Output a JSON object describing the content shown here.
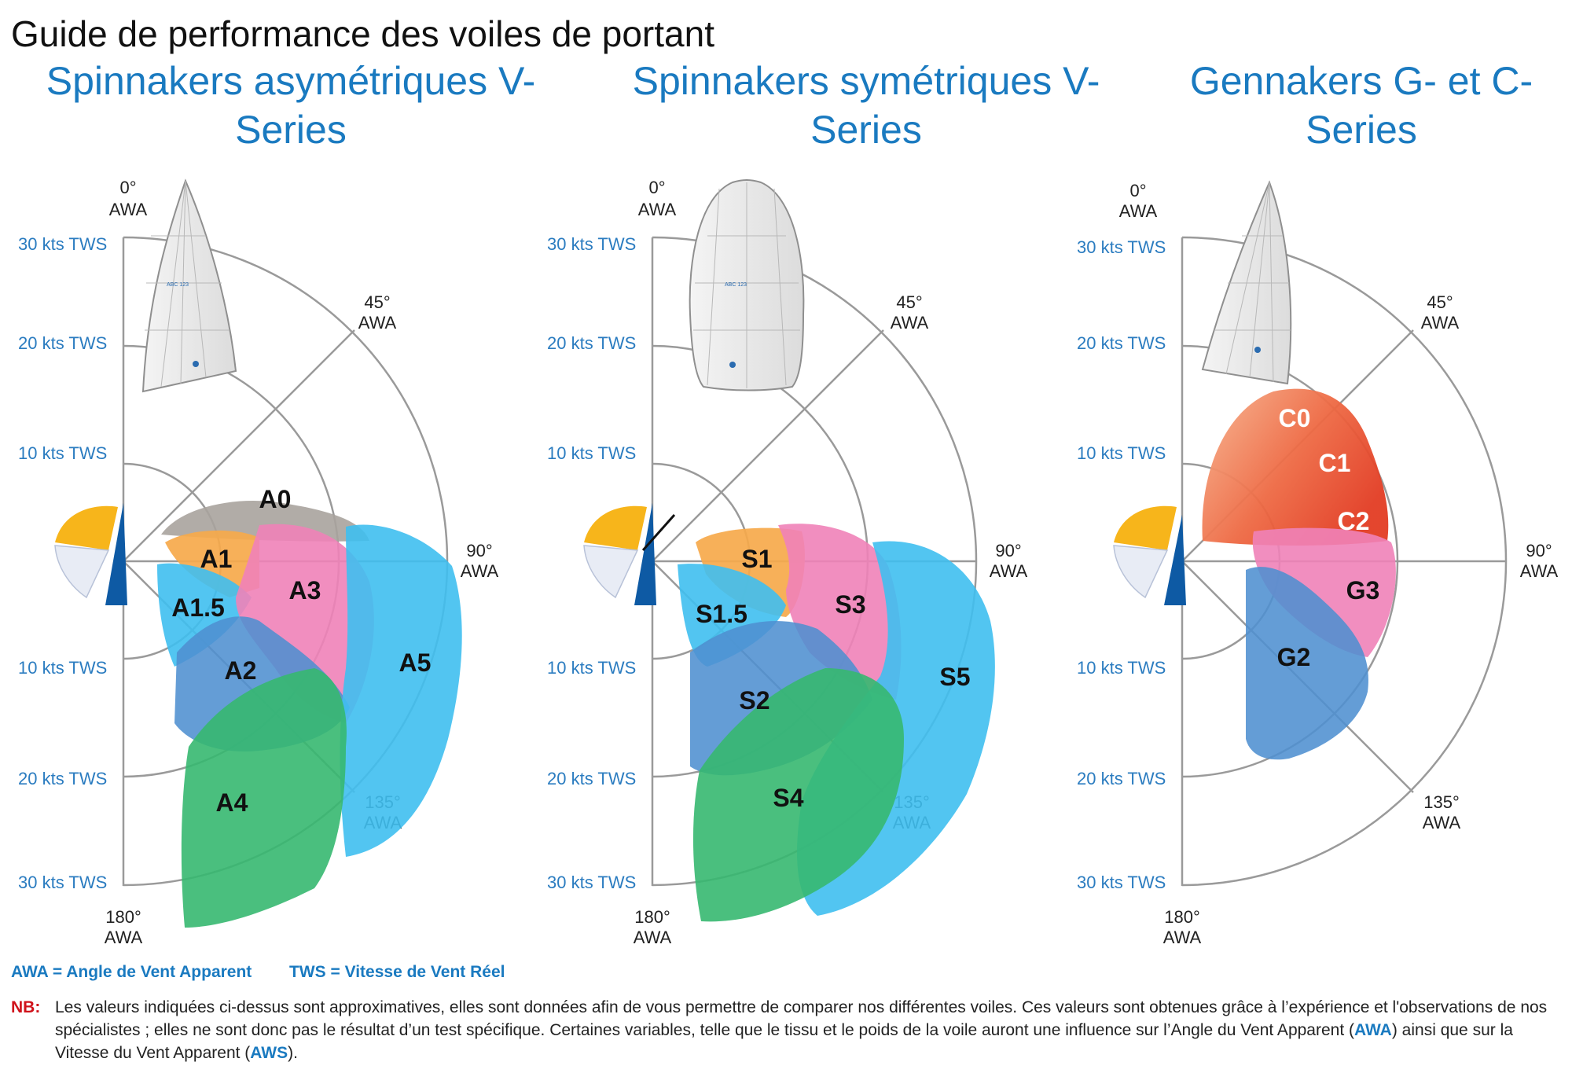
{
  "title": "Guide de performance des voiles de portant",
  "panels": [
    {
      "title_line1": "Spinnakers asymétriques V-",
      "title_line2": "Series",
      "zones": [
        "A0",
        "A1",
        "A1.5",
        "A2",
        "A3",
        "A4",
        "A5"
      ]
    },
    {
      "title_line1": "Spinnakers symétriques V-",
      "title_line2": "Series",
      "zones": [
        "S1",
        "S1.5",
        "S2",
        "S3",
        "S4",
        "S5"
      ]
    },
    {
      "title_line1": "Gennakers G- et C-",
      "title_line2": "Series",
      "zones": [
        "C0",
        "C1",
        "C2",
        "G2",
        "G3"
      ]
    }
  ],
  "polar": {
    "tws_labels": [
      "30 kts TWS",
      "20 kts TWS",
      "10 kts TWS",
      "10 kts TWS",
      "20 kts TWS",
      "30 kts TWS"
    ],
    "awa_angles": [
      "0°",
      "45°",
      "90°",
      "135°",
      "180°"
    ],
    "awa_unit": "AWA",
    "sail_number": "ABC 123"
  },
  "colors": {
    "title_blue": "#1a7ac0",
    "tws_blue": "#2b7cc0",
    "nb_red": "#d0121b",
    "grey_zone": "#a8a39d",
    "orange_zone": "#f6a94b",
    "light_blue_zone": "#3fbff0",
    "pink_zone": "#ef82b8",
    "mid_blue_zone": "#4f8fd0",
    "green_zone": "#36b870",
    "red_zone": "#e8452c"
  },
  "legend": {
    "awa_full": "AWA = Angle de Vent Apparent",
    "tws_full": "TWS = Vitesse de Vent Réel"
  },
  "note": {
    "label": "NB",
    "text_1": "Les valeurs indiquées ci-dessus sont approximatives, elles sont données afin de vous permettre de comparer nos différentes voiles. Ces valeurs sont obtenues grâce à l’expérience et l'observations de nos spécialistes ; elles ne sont donc pas le résultat d’un test spécifique. Certaines variables, telle que le tissu et le poids de la voile auront une influence sur l’Angle du Vent Apparent (",
    "awa": "AWA",
    "text_2": ") ainsi que sur la Vitesse du Vent Apparent (",
    "aws": "AWS",
    "text_3": ")."
  }
}
